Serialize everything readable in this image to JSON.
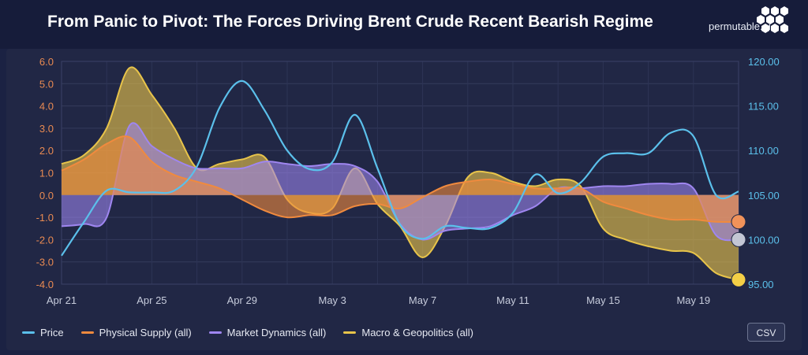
{
  "header": {
    "title": "From Panic to Pivot: The Forces Driving Brent Crude Recent Bearish Regime",
    "logo_text": "permutable.ai",
    "logo_icon": "hexagon-cluster-icon"
  },
  "colors": {
    "price": "#5bc0eb",
    "physical_supply": "#f08a3e",
    "market_dynamics": "#9f86f0",
    "macro": "#e8c44a",
    "left_axis_text": "#e98a52",
    "right_axis_text": "#5bc0eb",
    "end_marker_physical": "#f0925a",
    "end_marker_market": "#c3c6d4",
    "end_marker_macro": "#f4cf46"
  },
  "legend": [
    {
      "key": "price",
      "label": "Price",
      "color": "#5bc0eb"
    },
    {
      "key": "physical_supply",
      "label": "Physical Supply (all)",
      "color": "#f08a3e"
    },
    {
      "key": "market_dynamics",
      "label": "Market Dynamics (all)",
      "color": "#9f86f0"
    },
    {
      "key": "macro",
      "label": "Macro & Geopolitics (all)",
      "color": "#e8c44a"
    }
  ],
  "csv_button": {
    "label": "CSV"
  },
  "chart_data": {
    "type": "line",
    "title": "From Panic to Pivot: The Forces Driving Brent Crude Recent Bearish Regime",
    "x": [
      "Apr 21",
      "Apr 22",
      "Apr 23",
      "Apr 24",
      "Apr 25",
      "Apr 26",
      "Apr 27",
      "Apr 28",
      "Apr 29",
      "Apr 30",
      "May 1",
      "May 2",
      "May 3",
      "May 4",
      "May 5",
      "May 6",
      "May 7",
      "May 8",
      "May 9",
      "May 10",
      "May 11",
      "May 12",
      "May 13",
      "May 14",
      "May 15",
      "May 16",
      "May 17",
      "May 18",
      "May 19",
      "May 20",
      "May 21"
    ],
    "x_tick_labels": [
      "Apr 21",
      "Apr 25",
      "Apr 29",
      "May 3",
      "May 7",
      "May 11",
      "May 15",
      "May 19"
    ],
    "y_left": {
      "ticks": [
        "6.0",
        "5.0",
        "4.0",
        "3.0",
        "2.0",
        "1.0",
        "0.0",
        "-1.0",
        "-2.0",
        "-3.0",
        "-4.0"
      ],
      "range": [
        -4.0,
        6.0
      ]
    },
    "y_right": {
      "ticks": [
        "120.00",
        "115.00",
        "110.00",
        "105.00",
        "100.00",
        "95.00"
      ],
      "range": [
        95,
        120
      ]
    },
    "grid": true,
    "legend_position": "bottom-left",
    "series": [
      {
        "name": "Price",
        "axis": "right",
        "style": "line",
        "values": [
          98.2,
          102.0,
          105.5,
          105.3,
          105.3,
          105.5,
          108.2,
          114.8,
          117.8,
          114.5,
          110.0,
          107.9,
          108.7,
          114.0,
          108.0,
          101.7,
          100.1,
          101.5,
          101.3,
          101.3,
          103.0,
          107.3,
          105.2,
          106.4,
          109.3,
          109.7,
          109.7,
          112.0,
          111.6,
          105.0,
          105.4
        ]
      },
      {
        "name": "Physical Supply (all)",
        "axis": "left",
        "style": "area",
        "values": [
          1.1,
          1.6,
          2.3,
          2.6,
          1.5,
          0.9,
          0.6,
          0.3,
          -0.2,
          -0.7,
          -1.0,
          -0.9,
          -0.9,
          -0.5,
          -0.4,
          -0.6,
          -0.1,
          0.4,
          0.6,
          0.7,
          0.5,
          0.3,
          0.3,
          0.3,
          -0.3,
          -0.6,
          -0.9,
          -1.1,
          -1.1,
          -1.2,
          -1.2
        ]
      },
      {
        "name": "Market Dynamics (all)",
        "axis": "left",
        "style": "area",
        "values": [
          -1.4,
          -1.3,
          -1.0,
          3.1,
          2.2,
          1.6,
          1.2,
          1.2,
          1.2,
          1.5,
          1.4,
          1.3,
          1.4,
          1.3,
          0.6,
          -1.3,
          -2.0,
          -1.6,
          -1.5,
          -1.4,
          -0.9,
          -0.5,
          0.3,
          0.3,
          0.4,
          0.4,
          0.5,
          0.5,
          0.3,
          -1.8,
          -2.0
        ]
      },
      {
        "name": "Macro & Geopolitics (all)",
        "axis": "left",
        "style": "area",
        "values": [
          1.4,
          1.8,
          3.0,
          5.7,
          4.5,
          3.0,
          1.2,
          1.4,
          1.6,
          1.7,
          -0.2,
          -0.8,
          -0.6,
          1.2,
          -0.4,
          -1.4,
          -2.8,
          -1.4,
          0.8,
          1.0,
          0.6,
          0.4,
          0.7,
          0.4,
          -1.5,
          -2.0,
          -2.3,
          -2.5,
          -2.6,
          -3.5,
          -3.8
        ]
      }
    ]
  }
}
